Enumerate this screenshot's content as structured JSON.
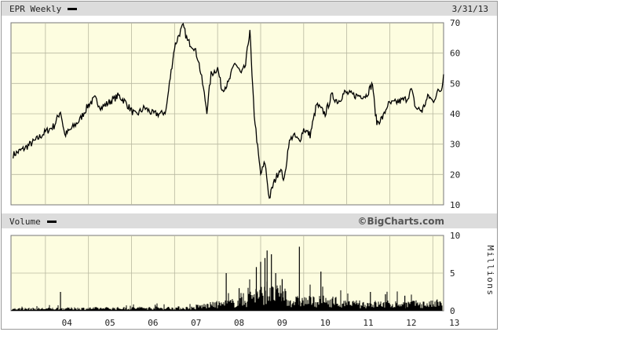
{
  "header": {
    "ticker_label": "EPR Weekly",
    "date": "3/31/13"
  },
  "volume_header": {
    "label": "Volume",
    "brand": "©BigCharts.com"
  },
  "chart_data": [
    {
      "type": "line",
      "name": "price",
      "x_tick_labels": [
        "04",
        "05",
        "06",
        "07",
        "08",
        "09",
        "10",
        "11",
        "12",
        "13"
      ],
      "x_range": [
        2003.2,
        2013.25
      ],
      "ylim": [
        10,
        70
      ],
      "y_ticks": [
        10,
        20,
        30,
        40,
        50,
        60,
        70
      ],
      "grid": true,
      "series_color": "#000000",
      "background_color": "#fdfde0",
      "points": [
        [
          2003.25,
          26.5
        ],
        [
          2003.5,
          28.5
        ],
        [
          2003.75,
          31
        ],
        [
          2004.0,
          34
        ],
        [
          2004.2,
          36
        ],
        [
          2004.35,
          41
        ],
        [
          2004.45,
          33
        ],
        [
          2004.6,
          35
        ],
        [
          2004.8,
          38
        ],
        [
          2005.0,
          43
        ],
        [
          2005.15,
          45
        ],
        [
          2005.3,
          42
        ],
        [
          2005.5,
          44
        ],
        [
          2005.7,
          46
        ],
        [
          2005.85,
          44
        ],
        [
          2006.0,
          41
        ],
        [
          2006.1,
          39.5
        ],
        [
          2006.3,
          42
        ],
        [
          2006.5,
          40
        ],
        [
          2006.7,
          40
        ],
        [
          2006.8,
          41
        ],
        [
          2006.9,
          52
        ],
        [
          2007.0,
          62
        ],
        [
          2007.1,
          66
        ],
        [
          2007.2,
          69
        ],
        [
          2007.3,
          64
        ],
        [
          2007.45,
          62
        ],
        [
          2007.55,
          58
        ],
        [
          2007.65,
          50
        ],
        [
          2007.75,
          41
        ],
        [
          2007.85,
          53
        ],
        [
          2008.0,
          55
        ],
        [
          2008.1,
          48
        ],
        [
          2008.25,
          50
        ],
        [
          2008.4,
          57
        ],
        [
          2008.55,
          53
        ],
        [
          2008.65,
          56
        ],
        [
          2008.75,
          68
        ],
        [
          2008.8,
          52
        ],
        [
          2008.85,
          40
        ],
        [
          2008.95,
          26
        ],
        [
          2009.0,
          20
        ],
        [
          2009.1,
          24
        ],
        [
          2009.2,
          12
        ],
        [
          2009.3,
          17
        ],
        [
          2009.45,
          22
        ],
        [
          2009.55,
          18
        ],
        [
          2009.65,
          30
        ],
        [
          2009.75,
          33
        ],
        [
          2009.9,
          31
        ],
        [
          2010.0,
          35
        ],
        [
          2010.15,
          33
        ],
        [
          2010.3,
          43
        ],
        [
          2010.5,
          40
        ],
        [
          2010.65,
          46
        ],
        [
          2010.8,
          44
        ],
        [
          2010.95,
          47
        ],
        [
          2011.2,
          46
        ],
        [
          2011.45,
          46
        ],
        [
          2011.6,
          50
        ],
        [
          2011.65,
          42
        ],
        [
          2011.7,
          37
        ],
        [
          2011.85,
          39
        ],
        [
          2011.95,
          43
        ],
        [
          2012.2,
          44
        ],
        [
          2012.4,
          45
        ],
        [
          2012.5,
          48
        ],
        [
          2012.6,
          42
        ],
        [
          2012.75,
          41
        ],
        [
          2012.9,
          46
        ],
        [
          2013.0,
          44
        ],
        [
          2013.1,
          47
        ],
        [
          2013.2,
          48
        ],
        [
          2013.25,
          53
        ]
      ]
    },
    {
      "type": "bar",
      "name": "volume",
      "ylabel": "Millions",
      "ylim": [
        0,
        10
      ],
      "y_ticks": [
        0,
        5,
        10
      ],
      "x_range": [
        2003.2,
        2013.25
      ],
      "grid": true,
      "series_color": "#000000",
      "background_color": "#fdfde0",
      "spikes": [
        [
          2004.35,
          2.5
        ],
        [
          2006.55,
          0.8
        ],
        [
          2008.2,
          5
        ],
        [
          2008.5,
          3
        ],
        [
          2008.9,
          5.8
        ],
        [
          2009.0,
          6.5
        ],
        [
          2009.1,
          7
        ],
        [
          2009.15,
          8
        ],
        [
          2009.25,
          7.5
        ],
        [
          2009.35,
          5
        ],
        [
          2009.5,
          4.2
        ],
        [
          2009.9,
          8.5
        ],
        [
          2010.4,
          5.2
        ],
        [
          2011.55,
          2.5
        ],
        [
          2011.9,
          2.2
        ],
        [
          2012.35,
          2.0
        ],
        [
          2013.1,
          1.5
        ]
      ]
    }
  ]
}
